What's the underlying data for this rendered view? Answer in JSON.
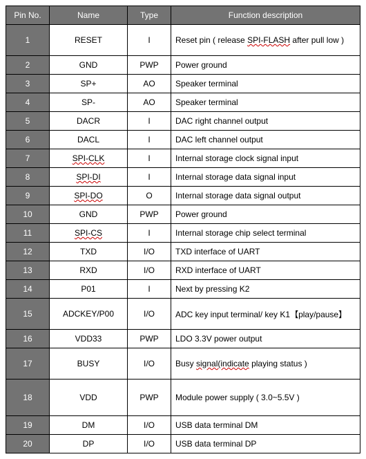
{
  "table": {
    "headers": {
      "pin": "Pin No.",
      "name": "Name",
      "type": "Type",
      "desc": "Function description"
    },
    "colors": {
      "header_bg": "#737373",
      "header_fg": "#ffffff",
      "border": "#000000",
      "wavy_underline": "#cc0000"
    },
    "font": {
      "family": "Arial",
      "size_pt": 9
    },
    "rows": [
      {
        "pin": "1",
        "name": "RESET",
        "type": "I",
        "desc": "Reset pin ( release SPI-FLASH after pull low )",
        "tall": true,
        "desc_wavy": [
          "SPI-FLASH"
        ]
      },
      {
        "pin": "2",
        "name": "GND",
        "type": "PWP",
        "desc": "Power ground"
      },
      {
        "pin": "3",
        "name": "SP+",
        "type": "AO",
        "desc": "Speaker terminal"
      },
      {
        "pin": "4",
        "name": "SP-",
        "type": "AO",
        "desc": "Speaker terminal"
      },
      {
        "pin": "5",
        "name": "DACR",
        "type": "I",
        "desc": "DAC right channel output"
      },
      {
        "pin": "6",
        "name": "DACL",
        "type": "I",
        "desc": "DAC left channel output"
      },
      {
        "pin": "7",
        "name": "SPI-CLK",
        "type": "I",
        "desc": "Internal storage clock signal input",
        "name_wavy": true
      },
      {
        "pin": "8",
        "name": "SPI-DI",
        "type": "I",
        "desc": "Internal storage data signal input",
        "name_wavy": true
      },
      {
        "pin": "9",
        "name": "SPI-DO",
        "type": "O",
        "desc": "Internal storage data signal output",
        "name_wavy": true
      },
      {
        "pin": "10",
        "name": "GND",
        "type": "PWP",
        "desc": "Power ground"
      },
      {
        "pin": "11",
        "name": "SPI-CS",
        "type": "I",
        "desc": "Internal storage chip select terminal",
        "name_wavy": true
      },
      {
        "pin": "12",
        "name": "TXD",
        "type": "I/O",
        "desc": "TXD interface of UART"
      },
      {
        "pin": "13",
        "name": "RXD",
        "type": "I/O",
        "desc": "RXD interface of UART"
      },
      {
        "pin": "14",
        "name": "P01",
        "type": "I",
        "desc": "Next by pressing K2"
      },
      {
        "pin": "15",
        "name": "ADCKEY/P00",
        "type": "I/O",
        "desc": "ADC key input terminal/ key K1【play/pause】",
        "tall": true
      },
      {
        "pin": "16",
        "name": "VDD33",
        "type": "PWP",
        "desc": "LDO 3.3V power output"
      },
      {
        "pin": "17",
        "name": "BUSY",
        "type": "I/O",
        "desc": "Busy signal(indicate playing status )",
        "tall": true,
        "desc_wavy": [
          "signal(indicate"
        ]
      },
      {
        "pin": "18",
        "name": "VDD",
        "type": "PWP",
        "desc": "Module power supply ( 3.0~5.5V )",
        "taller": true
      },
      {
        "pin": "19",
        "name": "DM",
        "type": "I/O",
        "desc": "USB data terminal DM"
      },
      {
        "pin": "20",
        "name": "DP",
        "type": "I/O",
        "desc": "USB data terminal DP"
      }
    ]
  }
}
